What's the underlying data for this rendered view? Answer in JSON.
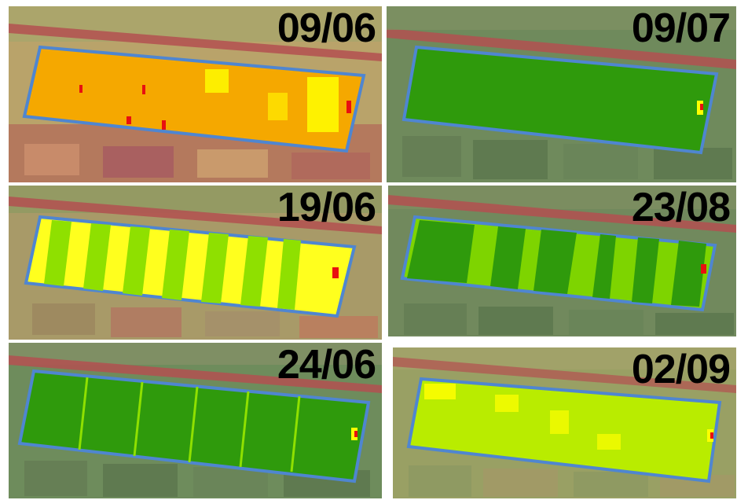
{
  "panels": [
    {
      "date": "09/06",
      "palette": {
        "background": "#b88f6a",
        "field": "#f5a800",
        "accents": [
          "#ffff00",
          "#e81010"
        ]
      }
    },
    {
      "date": "09/07",
      "palette": {
        "background": "#6f8a5c",
        "field": "#2f9a0c",
        "accents": [
          "#ffff00",
          "#e81010"
        ]
      }
    },
    {
      "date": "19/06",
      "palette": {
        "background": "#a89a68",
        "field": "#ffff1e",
        "accents": [
          "#8fe000",
          "#e81010"
        ]
      }
    },
    {
      "date": "23/08",
      "palette": {
        "background": "#71895d",
        "field": "#7ed400",
        "accents": [
          "#2f9a0c",
          "#e81010"
        ]
      }
    },
    {
      "date": "24/06",
      "palette": {
        "background": "#6e8c5c",
        "field": "#2f9a0c",
        "accents": [
          "#8fe000",
          "#e81010"
        ]
      }
    },
    {
      "date": "02/09",
      "palette": {
        "background": "#99a064",
        "field": "#b9ec00",
        "accents": [
          "#ffff00",
          "#e81010"
        ]
      }
    }
  ],
  "colors": {
    "outline": "#4f86d0",
    "road": "#b35050",
    "gap": "#ffffff"
  }
}
